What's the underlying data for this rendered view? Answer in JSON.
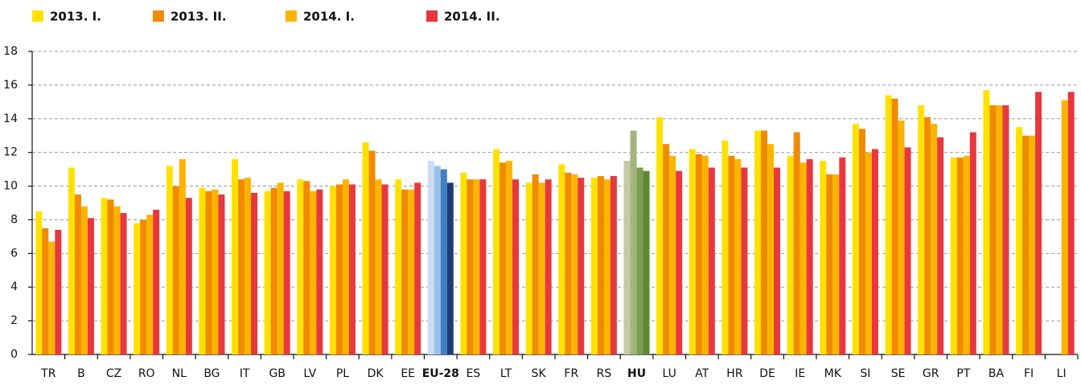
{
  "chart_data": {
    "type": "bar",
    "categories": [
      "TR",
      "B",
      "CZ",
      "RO",
      "NL",
      "BG",
      "IT",
      "GB",
      "LV",
      "PL",
      "DK",
      "EE",
      "EU-28",
      "ES",
      "LT",
      "SK",
      "FR",
      "RS",
      "HU",
      "LU",
      "AT",
      "HR",
      "DE",
      "IE",
      "MK",
      "SI",
      "SE",
      "GR",
      "PT",
      "BA",
      "FI",
      "LI"
    ],
    "series": [
      {
        "name": "2013. I.",
        "color": "#ffe100",
        "values": [
          8.5,
          11.1,
          9.3,
          7.8,
          11.2,
          9.9,
          11.6,
          9.7,
          10.4,
          10.0,
          12.6,
          10.4,
          11.5,
          10.8,
          12.2,
          10.2,
          11.3,
          10.5,
          11.5,
          14.1,
          12.2,
          12.7,
          13.3,
          11.8,
          11.5,
          13.7,
          15.4,
          14.8,
          11.7,
          15.7,
          13.5,
          null
        ]
      },
      {
        "name": "2013. II.",
        "color": "#f08a00",
        "values": [
          7.5,
          9.5,
          9.2,
          8.0,
          10.0,
          9.7,
          10.4,
          9.9,
          10.3,
          10.1,
          12.1,
          9.8,
          11.2,
          10.4,
          11.4,
          10.7,
          10.8,
          10.6,
          13.3,
          12.5,
          11.9,
          11.8,
          13.3,
          13.2,
          10.7,
          13.4,
          15.2,
          14.1,
          11.7,
          14.8,
          13.0,
          null
        ]
      },
      {
        "name": "2014. I.",
        "color": "#fbb400",
        "values": [
          6.7,
          8.8,
          8.8,
          8.3,
          11.6,
          9.8,
          10.5,
          10.2,
          9.7,
          10.4,
          10.4,
          9.8,
          11.0,
          10.4,
          11.5,
          10.2,
          10.7,
          10.4,
          11.1,
          11.8,
          11.8,
          11.6,
          12.5,
          11.4,
          10.7,
          12.0,
          13.9,
          13.7,
          11.8,
          14.8,
          13.0,
          15.1
        ]
      },
      {
        "name": "2014. II.",
        "color": "#e8383d",
        "values": [
          7.4,
          8.1,
          8.4,
          8.6,
          9.3,
          9.5,
          9.6,
          9.7,
          9.8,
          10.1,
          10.1,
          10.2,
          10.2,
          10.4,
          10.4,
          10.4,
          10.5,
          10.6,
          10.9,
          10.9,
          11.1,
          11.1,
          11.1,
          11.6,
          11.7,
          12.2,
          12.3,
          12.9,
          13.2,
          14.8,
          15.6,
          15.6
        ]
      }
    ],
    "highlight_colors": {
      "EU-28": [
        "#c9dcf2",
        "#9cc1e6",
        "#3f7fc4",
        "#1d3b78"
      ],
      "HU": [
        "#c4caa5",
        "#a3b47e",
        "#7c9d52",
        "#5b8a2f"
      ]
    },
    "ylim": [
      0,
      18
    ],
    "yticks": [
      0,
      2,
      4,
      6,
      8,
      10,
      12,
      14,
      16,
      18
    ],
    "grid": true,
    "legend": "top-left"
  }
}
